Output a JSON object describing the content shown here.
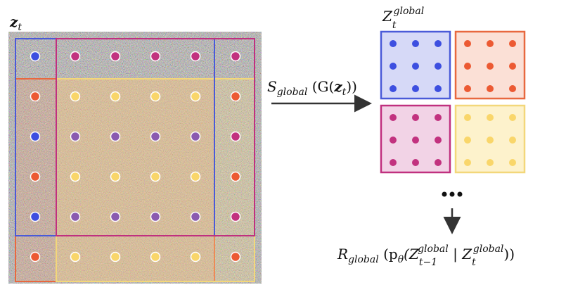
{
  "noisy_latent": {
    "symbol": "z",
    "subscript": "t"
  },
  "operation": {
    "symbol": "S",
    "subscript": "global",
    "open": " (G(",
    "arg_symbol": "z",
    "arg_subscript": "t",
    "close": "))"
  },
  "global_latent": {
    "symbol": "Z",
    "subscript": "t",
    "superscript": "global"
  },
  "reverse": {
    "symbol": "R",
    "subscript": "global",
    "open": " (p",
    "theta": "θ",
    "paren": "(Z",
    "prev_subscript": "t−1",
    "prev_superscript": "global",
    "given": " | Z",
    "cur_subscript": "t",
    "cur_superscript": "global",
    "close": "))"
  }
}
